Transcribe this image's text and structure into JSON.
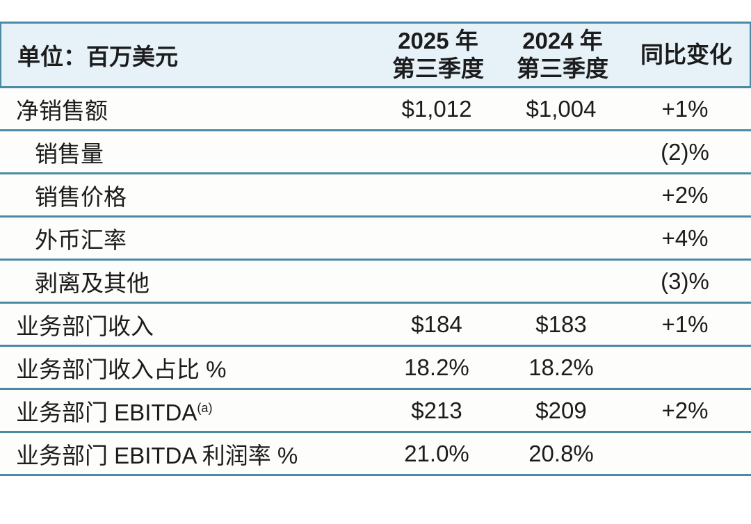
{
  "theme": {
    "line_color": "#4c89a4",
    "header_bg_color": "#e6f1f8",
    "row_bg_color": "#fdfdfb",
    "text_color": "#1c1c1c"
  },
  "table": {
    "unit_label": "单位：百万美元",
    "columns": [
      {
        "line1": "2025 年",
        "line2": "第三季度"
      },
      {
        "line1": "2024 年",
        "line2": "第三季度"
      },
      {
        "line1": "同比变化",
        "line2": ""
      }
    ],
    "rows": [
      {
        "label": "净销售额",
        "indent": false,
        "superscript": "",
        "v2025": "$1,012",
        "v2024": "$1,004",
        "yoy": "+1%"
      },
      {
        "label": "销售量",
        "indent": true,
        "superscript": "",
        "v2025": "",
        "v2024": "",
        "yoy": "(2)%"
      },
      {
        "label": "销售价格",
        "indent": true,
        "superscript": "",
        "v2025": "",
        "v2024": "",
        "yoy": "+2%"
      },
      {
        "label": "外币汇率",
        "indent": true,
        "superscript": "",
        "v2025": "",
        "v2024": "",
        "yoy": "+4%"
      },
      {
        "label": "剥离及其他",
        "indent": true,
        "superscript": "",
        "v2025": "",
        "v2024": "",
        "yoy": "(3)%"
      },
      {
        "label": "业务部门收入",
        "indent": false,
        "superscript": "",
        "v2025": "$184",
        "v2024": "$183",
        "yoy": "+1%"
      },
      {
        "label": "业务部门收入占比 %",
        "indent": false,
        "superscript": "",
        "v2025": "18.2%",
        "v2024": "18.2%",
        "yoy": ""
      },
      {
        "label": "业务部门 EBITDA",
        "indent": false,
        "superscript": "(a)",
        "v2025": "$213",
        "v2024": "$209",
        "yoy": "+2%"
      },
      {
        "label": "业务部门 EBITDA 利润率 %",
        "indent": false,
        "superscript": "",
        "v2025": "21.0%",
        "v2024": "20.8%",
        "yoy": ""
      }
    ]
  },
  "chart_data": {
    "type": "table",
    "title": "单位：百万美元",
    "columns": [
      "2025 年 第三季度",
      "2024 年 第三季度",
      "同比变化"
    ],
    "row_labels": [
      "净销售额",
      "销售量",
      "销售价格",
      "外币汇率",
      "剥离及其他",
      "业务部门收入",
      "业务部门收入占比 %",
      "业务部门 EBITDA(a)",
      "业务部门 EBITDA 利润率 %"
    ],
    "cells": [
      [
        "$1,012",
        "$1,004",
        "+1%"
      ],
      [
        "",
        "",
        "(2)%"
      ],
      [
        "",
        "",
        "+2%"
      ],
      [
        "",
        "",
        "+4%"
      ],
      [
        "",
        "",
        "(3)%"
      ],
      [
        "$184",
        "$183",
        "+1%"
      ],
      [
        "18.2%",
        "18.2%",
        ""
      ],
      [
        "$213",
        "$209",
        "+2%"
      ],
      [
        "21.0%",
        "20.8%",
        ""
      ]
    ]
  }
}
